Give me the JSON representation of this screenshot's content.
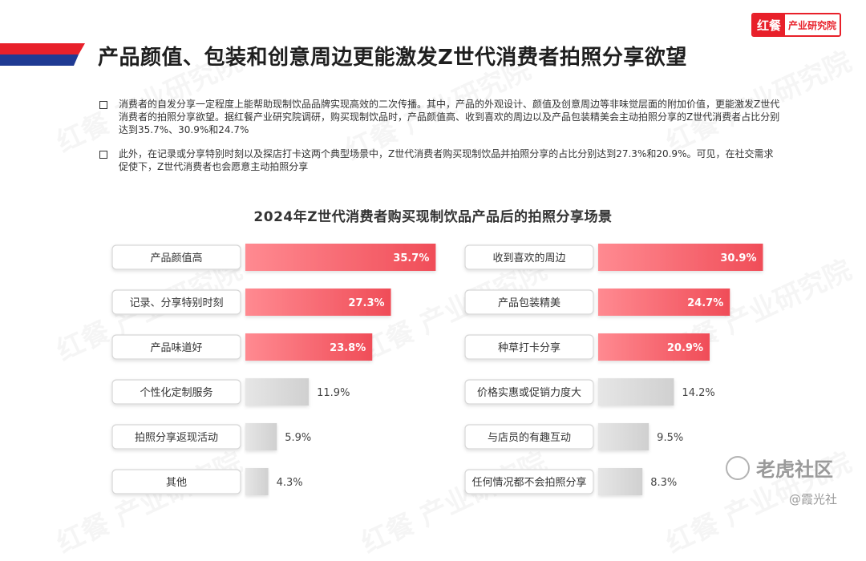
{
  "brand": {
    "logo_mark": "红餐",
    "logo_text": "产业研究院"
  },
  "title": "产品颜值、包装和创意周边更能激发Z世代消费者拍照分享欲望",
  "bullets": [
    "消费者的自发分享一定程度上能帮助现制饮品品牌实现高效的二次传播。其中，产品的外观设计、颜值及创意周边等非味觉层面的附加价值，更能激发Z世代消费者的拍照分享欲望。据红餐产业研究院调研，购买现制饮品时，产品颜值高、收到喜欢的周边以及产品包装精美会主动拍照分享的Z世代消费者占比分别达到35.7%、30.9%和24.7%",
    "此外，在记录或分享特别时刻以及探店打卡这两个典型场景中，Z世代消费者购买现制饮品并拍照分享的占比分别达到27.3%和20.9%。可见，在社交需求促使下，Z世代消费者也会愿意主动拍照分享"
  ],
  "watermark_text": "红餐 产业研究院",
  "social": {
    "name": "老虎社区",
    "credit": "@霞光社"
  },
  "colors": {
    "accent": "#f04d58",
    "accent_light": "#ff8a91",
    "gray_bar": "#d9d9d9",
    "brand_red": "#e8202a",
    "brand_navy": "#1f3a93"
  },
  "chart_data": {
    "type": "bar",
    "title": "2024年Z世代消费者购买现制饮品产品后的拍照分享场景",
    "unit": "%",
    "highlight_top_n": 3,
    "panels": [
      {
        "categories": [
          "产品颜值高",
          "记录、分享特别时刻",
          "产品味道好",
          "个性化定制服务",
          "拍照分享返现活动",
          "其他"
        ],
        "values": [
          35.7,
          27.3,
          23.8,
          11.9,
          5.9,
          4.3
        ]
      },
      {
        "categories": [
          "收到喜欢的周边",
          "产品包装精美",
          "种草打卡分享",
          "价格实惠或促销力度大",
          "与店员的有趣互动",
          "任何情况都不会拍照分享"
        ],
        "values": [
          30.9,
          24.7,
          20.9,
          14.2,
          9.5,
          8.3
        ]
      }
    ]
  }
}
